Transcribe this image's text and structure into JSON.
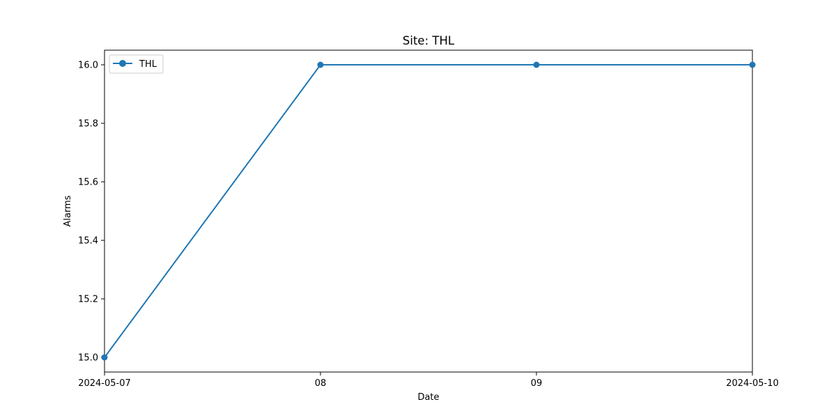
{
  "chart_data": {
    "type": "line",
    "title": "Site: THL",
    "xlabel": "Date",
    "ylabel": "Alarms",
    "x_tick_labels": [
      "2024-05-07",
      "08",
      "09",
      "2024-05-10"
    ],
    "y_tick_labels": [
      "15.0",
      "15.2",
      "15.4",
      "15.6",
      "15.8",
      "16.0"
    ],
    "x_dates": [
      "2024-05-07",
      "2024-05-08",
      "2024-05-09",
      "2024-05-10"
    ],
    "xlim": [
      "2024-05-07",
      "2024-05-10"
    ],
    "ylim": [
      14.95,
      16.05
    ],
    "y_ticks": [
      15.0,
      15.2,
      15.4,
      15.6,
      15.8,
      16.0
    ],
    "series": [
      {
        "name": "THL",
        "color": "#1f77b4",
        "marker": "circle",
        "x": [
          "2024-05-07",
          "2024-05-08",
          "2024-05-09",
          "2024-05-10"
        ],
        "values": [
          15.0,
          16.0,
          16.0,
          16.0
        ]
      }
    ],
    "legend": {
      "position": "top-left",
      "entries": [
        "THL"
      ]
    },
    "grid": false
  }
}
